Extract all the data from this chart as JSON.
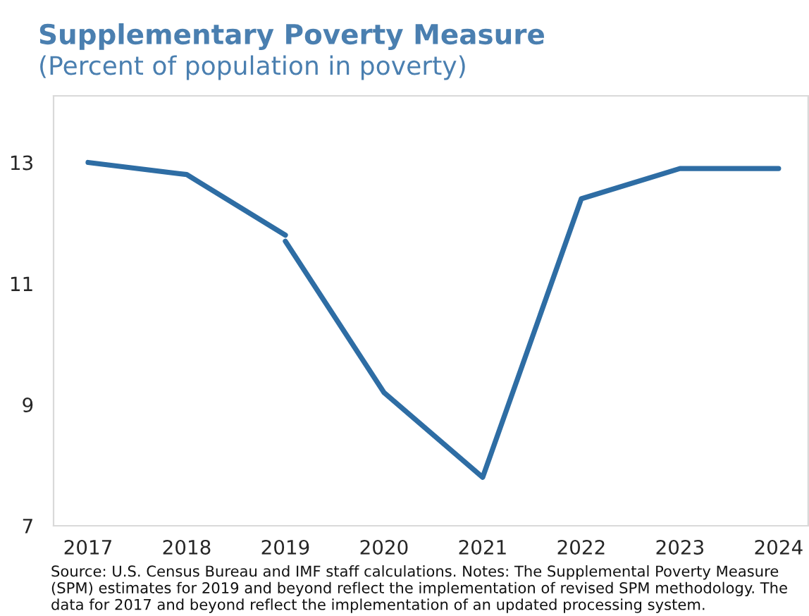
{
  "chart_data": {
    "type": "line",
    "title": "Supplementary Poverty Measure",
    "subtitle": "(Percent of population in poverty)",
    "series": [
      {
        "color": "#2e6da4",
        "x": [
          2017,
          2018,
          2019
        ],
        "values": [
          13.0,
          12.8,
          11.8
        ]
      },
      {
        "color": "#2e6da4",
        "x": [
          2019,
          2020,
          2021,
          2022,
          2023,
          2024
        ],
        "values": [
          11.7,
          9.2,
          7.8,
          12.4,
          12.9,
          12.9
        ]
      }
    ],
    "xlim": [
      2016.65,
      2024.3
    ],
    "xticks": [
      2017,
      2018,
      2019,
      2020,
      2021,
      2022,
      2023,
      2024
    ],
    "ylim": [
      7,
      14.1
    ],
    "yticks": [
      7,
      9,
      11,
      13
    ],
    "grid": false,
    "marker": "none",
    "line_style": "solid",
    "annotations": [
      "Source: U.S. Census Bureau and IMF staff calculations. Notes: The Supplemental Poverty Measure (SPM) estimates for 2019 and beyond reflect the implementation of revised SPM methodology. The data for 2017 and beyond reflect the implementation of an updated processing system."
    ]
  }
}
